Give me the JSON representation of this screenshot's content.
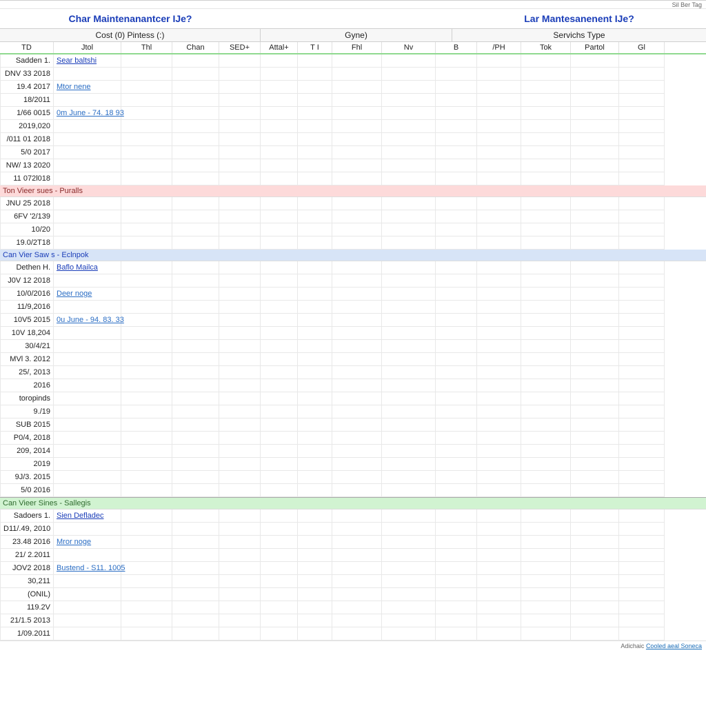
{
  "topbar": {
    "text": "Sil Ber Tag"
  },
  "titles": {
    "left": "Char Maintenanantcer IJe?",
    "right": "Lar Mantesanenent IJe?"
  },
  "subheaders": {
    "s1": "Cost (0) Pintess (:)",
    "s2": "Gyne)",
    "s3": "Servichs Type"
  },
  "columns": [
    "TD",
    "Jtol",
    "Thl",
    "Chan",
    "SED+",
    "Attal+",
    "T I",
    "Fhl",
    "Nv",
    "B",
    "/PH",
    "Tok",
    "Partol",
    "Gl"
  ],
  "colors": {
    "group1_bg": "#fddada",
    "group1_fg": "#8a2b2b",
    "group2_bg": "#d7e4f7",
    "group2_fg": "#1a3db8",
    "group3_bg": "#d1f3d1",
    "group3_fg": "#2f6b2f"
  },
  "section1": {
    "header_c0": "Sadden 1.",
    "header_c1": "Sear baltshi",
    "rows": [
      "DNV 33 2018",
      "19.4 2017",
      "18/2011",
      "1/66 0015",
      "2019,020",
      "/011 01 2018",
      "5/0 2017",
      "NW/ 13 2020",
      "11 072l018"
    ],
    "row1_link": "Mtor nene",
    "row3_link": "0m June - 74. 18 93"
  },
  "group1": {
    "label": "Ton Vieer sues - Puralls",
    "rows": [
      "JNU 25 2018",
      "6FV '2/139",
      "10/20",
      "19.0/2T18"
    ]
  },
  "group2": {
    "label": "Can Vier Saw s - Eclnpok",
    "header_c0": "Dethen H.",
    "header_c1": "Baflo Mailca",
    "rows": [
      "J0V 12 2018",
      "10/0/2016",
      "11/9,2016",
      "10V5 2015",
      "10V 18,204",
      "30/4/21",
      "MVl 3. 2012",
      "25/, 2013",
      "2016",
      "toropinds",
      "9./19",
      "SUB 2015",
      "P0/4, 2018",
      "209, 2014",
      "2019",
      "9J/3. 2015",
      "5/0 2016"
    ],
    "row1_link": "Deer noge",
    "row3_link": "0u June - 94. 83. 33"
  },
  "group3": {
    "label": "Can Vieer Sines - Sallegis",
    "header_c0": "Sadoers 1.",
    "header_c1": "Sien Defladec",
    "rows": [
      "D11/.49, 2010",
      "23.48 2016",
      "21/ 2.2011",
      "JOV2 2018",
      "30,211",
      "(ONIL)",
      "119.2V",
      "21/1.5 2013",
      "1/09.2011"
    ],
    "row1_link": "Mror noge",
    "row3_link": "Bustend - S11. 1005"
  },
  "footer": {
    "text1": "Adichaic ",
    "link": "Cooled aeal Soneca"
  }
}
